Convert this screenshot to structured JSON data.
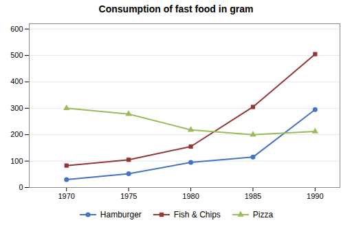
{
  "chart_data": {
    "type": "line",
    "title": "Consumption of fast food in gram",
    "x": [
      1970,
      1975,
      1980,
      1985,
      1990
    ],
    "series": [
      {
        "name": "Hamburger",
        "color": "#4472C4",
        "marker": "circle",
        "values": [
          30,
          52,
          95,
          115,
          295
        ]
      },
      {
        "name": "Fish & Chips",
        "color": "#943634",
        "marker": "square",
        "values": [
          83,
          105,
          155,
          305,
          505
        ]
      },
      {
        "name": "Pizza",
        "color": "#9BBB59",
        "marker": "triangle",
        "values": [
          300,
          278,
          218,
          200,
          212
        ]
      }
    ],
    "xlim": [
      1967,
      1992
    ],
    "xticks": [
      1970,
      1975,
      1980,
      1985,
      1990
    ],
    "ylim": [
      0,
      620
    ],
    "yticks": [
      0,
      100,
      200,
      300,
      400,
      500,
      600
    ],
    "grid": true,
    "legend": "bottom"
  }
}
